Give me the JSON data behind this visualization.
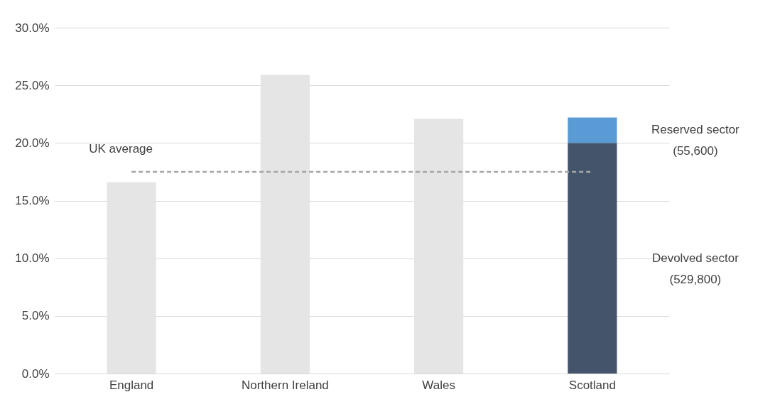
{
  "chart_data": {
    "type": "bar",
    "stacked": true,
    "categories": [
      "England",
      "Northern Ireland",
      "Wales",
      "Scotland"
    ],
    "series": [
      {
        "color": "#e5e5e5",
        "values": [
          16.6,
          25.9,
          22.1,
          null
        ]
      },
      {
        "name": "Devolved sector (529,800)",
        "color": "#44546a",
        "values": [
          null,
          null,
          null,
          20.0
        ]
      },
      {
        "name": "Reserved sector (55,600)",
        "color": "#5b9bd5",
        "values": [
          null,
          null,
          null,
          2.2
        ]
      }
    ],
    "ylim": [
      0,
      30
    ],
    "yticks": [
      {
        "value": 0,
        "label": "0.0%"
      },
      {
        "value": 5,
        "label": "5.0%"
      },
      {
        "value": 10,
        "label": "10.0%"
      },
      {
        "value": 15,
        "label": "15.0%"
      },
      {
        "value": 20,
        "label": "20.0%"
      },
      {
        "value": 25,
        "label": "25.0%"
      },
      {
        "value": 30,
        "label": "30.0%"
      }
    ],
    "ref_lines": [
      {
        "axis": "y",
        "value": 17.5,
        "label": "UK average",
        "color": "#a6a6a6",
        "line_style": "dashed"
      }
    ],
    "grid": "y",
    "legend": false
  }
}
